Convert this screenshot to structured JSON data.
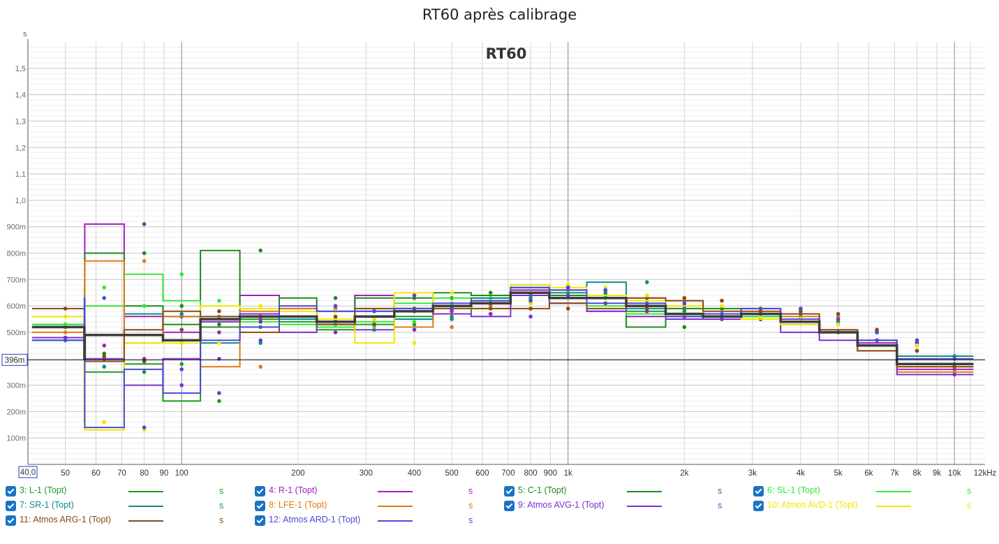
{
  "chart_data": {
    "type": "line",
    "title": "RT60 après calibrage",
    "watermark": "RT60",
    "ylabel": "s",
    "ylim": [
      0,
      1.6
    ],
    "xscale": "log",
    "xlim": [
      40,
      12000
    ],
    "y_ticks": [
      {
        "v": 0.1,
        "label": "100m"
      },
      {
        "v": 0.2,
        "label": "200m"
      },
      {
        "v": 0.3,
        "label": "300m"
      },
      {
        "v": 0.5,
        "label": "500m"
      },
      {
        "v": 0.6,
        "label": "600m"
      },
      {
        "v": 0.7,
        "label": "700m"
      },
      {
        "v": 0.8,
        "label": "800m"
      },
      {
        "v": 0.9,
        "label": "900m"
      },
      {
        "v": 1.0,
        "label": "1,0"
      },
      {
        "v": 1.1,
        "label": "1,1"
      },
      {
        "v": 1.2,
        "label": "1,2"
      },
      {
        "v": 1.3,
        "label": "1,3"
      },
      {
        "v": 1.4,
        "label": "1,4"
      },
      {
        "v": 1.5,
        "label": "1,5"
      }
    ],
    "x_ticks": [
      {
        "v": 50,
        "label": "50"
      },
      {
        "v": 60,
        "label": "60"
      },
      {
        "v": 70,
        "label": "70"
      },
      {
        "v": 80,
        "label": "80"
      },
      {
        "v": 90,
        "label": "90"
      },
      {
        "v": 100,
        "label": "100"
      },
      {
        "v": 200,
        "label": "200"
      },
      {
        "v": 300,
        "label": "300"
      },
      {
        "v": 400,
        "label": "400"
      },
      {
        "v": 500,
        "label": "500"
      },
      {
        "v": 600,
        "label": "600"
      },
      {
        "v": 700,
        "label": "700"
      },
      {
        "v": 800,
        "label": "800"
      },
      {
        "v": 900,
        "label": "900"
      },
      {
        "v": 1000,
        "label": "1k"
      },
      {
        "v": 2000,
        "label": "2k"
      },
      {
        "v": 3000,
        "label": "3k"
      },
      {
        "v": 4000,
        "label": "4k"
      },
      {
        "v": 5000,
        "label": "5k"
      },
      {
        "v": 6000,
        "label": "6k"
      },
      {
        "v": 7000,
        "label": "7k"
      },
      {
        "v": 8000,
        "label": "8k"
      },
      {
        "v": 9000,
        "label": "9k"
      },
      {
        "v": 10000,
        "label": "10k"
      },
      {
        "v": 12000,
        "label": "12kHz"
      }
    ],
    "x_start_label": "40,0",
    "cursor": {
      "value": 0.396,
      "label": "396m"
    },
    "band_centers": [
      50,
      63,
      80,
      100,
      125,
      160,
      200,
      250,
      315,
      400,
      500,
      630,
      800,
      1000,
      1250,
      1600,
      2000,
      2500,
      3150,
      4000,
      5000,
      6300,
      8000,
      10000
    ],
    "point_bands": [
      0,
      1,
      2,
      3,
      4,
      5,
      7,
      8,
      9,
      10,
      11,
      12,
      13,
      14,
      15,
      16,
      17,
      18,
      19,
      20,
      21,
      22,
      23
    ],
    "series": [
      {
        "name": "3: L-1 (Topt)",
        "color": "#1f9a1f",
        "values": [
          0.52,
          0.41,
          0.35,
          0.38,
          0.24,
          0.52,
          0.55,
          0.54,
          0.51,
          0.53,
          0.56,
          0.6,
          0.62,
          0.66,
          0.64,
          0.63,
          0.58,
          0.56,
          0.56,
          0.56,
          0.54,
          0.5,
          0.46,
          0.38
        ]
      },
      {
        "name": "4: R-1 (Topt)",
        "color": "#a020c0",
        "values": [
          0.48,
          0.45,
          0.91,
          0.56,
          0.5,
          0.55,
          0.64,
          0.59,
          0.55,
          0.64,
          0.58,
          0.6,
          0.61,
          0.66,
          0.66,
          0.58,
          0.56,
          0.55,
          0.55,
          0.57,
          0.53,
          0.5,
          0.46,
          0.36
        ]
      },
      {
        "name": "5: C-1 (Topt)",
        "color": "#1f8a1f",
        "values": [
          0.53,
          0.42,
          0.8,
          0.6,
          0.53,
          0.81,
          0.57,
          0.63,
          0.53,
          0.63,
          0.63,
          0.65,
          0.64,
          0.67,
          0.64,
          0.63,
          0.52,
          0.59,
          0.59,
          0.57,
          0.55,
          0.5,
          0.45,
          0.38
        ]
      },
      {
        "name": "6: SL-1 (Topt)",
        "color": "#33e833",
        "values": [
          0.53,
          0.67,
          0.6,
          0.72,
          0.62,
          0.54,
          0.54,
          0.53,
          0.52,
          0.54,
          0.61,
          0.63,
          0.63,
          0.65,
          0.63,
          0.6,
          0.57,
          0.57,
          0.56,
          0.56,
          0.54,
          0.5,
          0.45,
          0.37
        ]
      },
      {
        "name": "7: SR-1 (Topt)",
        "color": "#118a8a",
        "values": [
          0.47,
          0.37,
          0.39,
          0.57,
          0.56,
          0.46,
          0.56,
          0.55,
          0.58,
          0.58,
          0.55,
          0.57,
          0.63,
          0.67,
          0.65,
          0.69,
          0.59,
          0.57,
          0.55,
          0.57,
          0.54,
          0.5,
          0.47,
          0.41
        ]
      },
      {
        "name": "8: LFE-1 (Topt)",
        "color": "#e07b1a",
        "values": [
          0.5,
          0.16,
          0.77,
          0.46,
          0.56,
          0.37,
          0.58,
          0.59,
          0.53,
          0.59,
          0.52,
          0.6,
          0.59,
          0.68,
          0.66,
          0.64,
          0.63,
          0.62,
          0.57,
          0.55,
          0.56,
          0.51,
          0.43,
          0.35
        ]
      },
      {
        "name": "9: Atmos AVG-1 (Topt)",
        "color": "#7b2fd0",
        "values": [
          0.48,
          0.4,
          0.4,
          0.3,
          0.4,
          0.54,
          0.57,
          0.5,
          0.55,
          0.51,
          0.59,
          0.57,
          0.56,
          0.64,
          0.61,
          0.58,
          0.6,
          0.55,
          0.55,
          0.59,
          0.5,
          0.47,
          0.45,
          0.34
        ]
      },
      {
        "name": "10: Atmos AVD-1 (Topt)",
        "color": "#f3e600",
        "values": [
          0.56,
          0.16,
          0.13,
          0.46,
          0.46,
          0.6,
          0.59,
          0.58,
          0.55,
          0.46,
          0.65,
          0.59,
          0.61,
          0.68,
          0.67,
          0.64,
          0.62,
          0.6,
          0.56,
          0.55,
          0.53,
          0.5,
          0.45,
          0.37
        ]
      },
      {
        "name": "11: Atmos ARG-1 (Topt)",
        "color": "#8a4a15",
        "values": [
          0.59,
          0.41,
          0.39,
          0.51,
          0.58,
          0.56,
          0.5,
          0.56,
          0.53,
          0.59,
          0.59,
          0.59,
          0.59,
          0.59,
          0.61,
          0.59,
          0.63,
          0.62,
          0.58,
          0.58,
          0.57,
          0.51,
          0.43,
          0.37
        ]
      },
      {
        "name": "12: Atmos ARD-1 (Topt)",
        "color": "#4a4ad6",
        "values": [
          0.47,
          0.63,
          0.14,
          0.36,
          0.27,
          0.47,
          0.52,
          0.6,
          0.58,
          0.58,
          0.59,
          0.61,
          0.62,
          0.67,
          0.66,
          0.61,
          0.61,
          0.56,
          0.57,
          0.59,
          0.55,
          0.5,
          0.47,
          0.4
        ]
      },
      {
        "name": "",
        "color": "#3c3c3c",
        "role": "average",
        "values": [
          0.52,
          0.4,
          0.49,
          0.49,
          0.47,
          0.55,
          0.56,
          0.56,
          0.54,
          0.56,
          0.58,
          0.6,
          0.61,
          0.65,
          0.63,
          0.63,
          0.6,
          0.57,
          0.56,
          0.57,
          0.54,
          0.5,
          0.45,
          0.38
        ]
      }
    ]
  },
  "legend": {
    "unit": "s",
    "items": [
      {
        "label": "3: L-1 (Topt)",
        "color": "#1f9a1f"
      },
      {
        "label": "4: R-1 (Topt)",
        "color": "#a020c0"
      },
      {
        "label": "5: C-1 (Topt)",
        "color": "#1f8a1f"
      },
      {
        "label": "6: SL-1 (Topt)",
        "color": "#33e833"
      },
      {
        "label": "7: SR-1 (Topt)",
        "color": "#118a8a"
      },
      {
        "label": "8: LFE-1 (Topt)",
        "color": "#e07b1a"
      },
      {
        "label": "9: Atmos AVG-1 (Topt)",
        "color": "#7b2fd0"
      },
      {
        "label": "10: Atmos AVD-1 (Topt)",
        "color": "#f3e600"
      },
      {
        "label": "11: Atmos ARG-1 (Topt)",
        "color": "#8a4a15"
      },
      {
        "label": "12: Atmos ARD-1 (Topt)",
        "color": "#4a4ad6"
      }
    ]
  }
}
